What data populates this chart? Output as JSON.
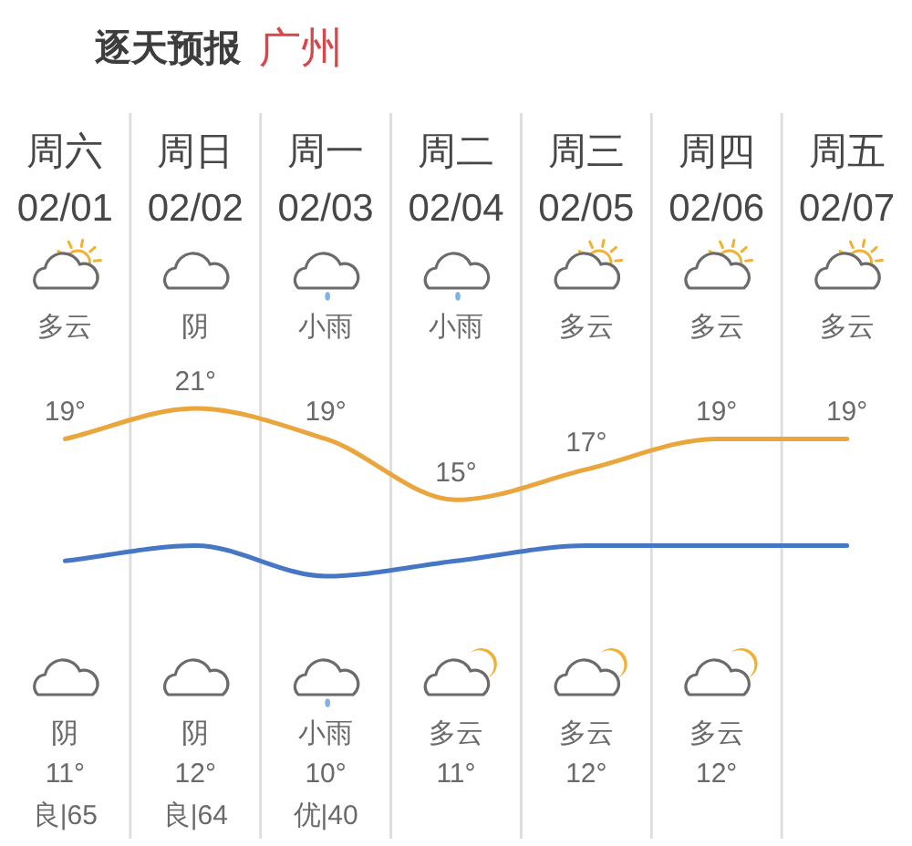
{
  "chart_data": {
    "type": "line",
    "title": "逐天预报",
    "subtitle": "广州",
    "categories": [
      "周六\n02/01",
      "周日\n02/02",
      "周一\n02/03",
      "周二\n02/04",
      "周三\n02/05",
      "周四\n02/06",
      "周五\n02/07"
    ],
    "series": [
      {
        "color": "#eaa53c",
        "values": [
          19,
          21,
          19,
          15,
          17,
          19,
          19
        ],
        "value_labels": [
          "19°",
          "21°",
          "19°",
          "15°",
          "17°",
          "19°",
          "19°"
        ]
      },
      {
        "color": "#4677c4",
        "values": [
          11,
          12,
          10,
          11,
          12,
          12,
          12
        ],
        "value_labels": [
          "11°",
          "12°",
          "10°",
          "11°",
          "12°",
          "12°",
          null
        ]
      }
    ],
    "annotations": [
      "多云",
      "阴",
      "小雨",
      "小雨",
      "多云",
      "多云",
      "多云",
      "阴",
      "阴",
      "小雨",
      "多云",
      "多云",
      "多云",
      "良|65",
      "良|64",
      "优|40"
    ],
    "grid": "x"
  }
}
